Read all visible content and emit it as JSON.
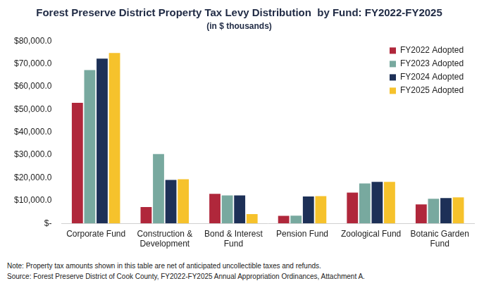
{
  "chart_data": {
    "type": "bar",
    "title": "Forest Preserve District Property Tax Levy Distribution  by Fund: FY2022-FY2025",
    "subtitle": "(in $ thousands)",
    "categories": [
      "Corporate Fund",
      [
        "Construction &",
        "Development"
      ],
      [
        "Bond & Interest",
        "Fund"
      ],
      "Pension Fund",
      "Zoological Fund",
      [
        "Botanic Garden",
        "Fund"
      ]
    ],
    "series": [
      {
        "name": "FY2022 Adopted",
        "color": "#b0273b",
        "values": [
          52900,
          7200,
          13000,
          3300,
          13500,
          8300
        ]
      },
      {
        "name": "FY2023 Adopted",
        "color": "#78a99f",
        "values": [
          67300,
          30400,
          12300,
          3400,
          17500,
          10800
        ]
      },
      {
        "name": "FY2024 Adopted",
        "color": "#1d3057",
        "values": [
          72300,
          19100,
          12300,
          11800,
          18200,
          11100
        ]
      },
      {
        "name": "FY2025 Adopted",
        "color": "#f6c22c",
        "values": [
          74800,
          19400,
          4100,
          12000,
          18200,
          11400
        ]
      }
    ],
    "ylim": [
      0,
      80000
    ],
    "yticks": [
      {
        "value": 0,
        "label": "$-"
      },
      {
        "value": 10000,
        "label": "$10,000.0"
      },
      {
        "value": 20000,
        "label": "$20,000.0"
      },
      {
        "value": 30000,
        "label": "$30,000.0"
      },
      {
        "value": 40000,
        "label": "$40,000.0"
      },
      {
        "value": 50000,
        "label": "$50,000.0"
      },
      {
        "value": 60000,
        "label": "$60,000.0"
      },
      {
        "value": 70000,
        "label": "$70,000.0"
      },
      {
        "value": 80000,
        "label": "$80,000.0"
      }
    ],
    "grid": false,
    "legend": "top right",
    "annotations": [
      "Note: Property tax amounts shown in this table are net of anticipated uncollectible taxes and refunds.",
      "Source: Forest Preserve District of Cook County, FY2022-FY2025 Annual Appropriation Ordinances, Attachment A."
    ]
  }
}
